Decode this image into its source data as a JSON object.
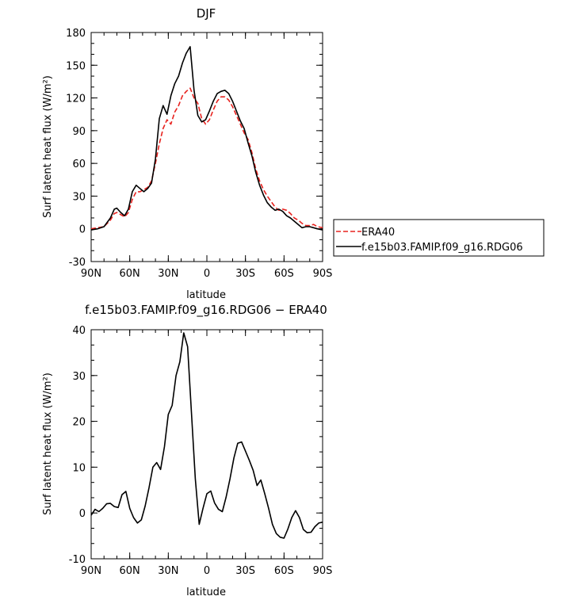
{
  "chart_data": [
    {
      "type": "line",
      "title": "DJF",
      "xlabel": "latitude",
      "ylabel": "Surf latent heat flux (W/m²)",
      "xlim": [
        90,
        -90
      ],
      "ylim": [
        -30,
        180
      ],
      "x_ticks": [
        "90N",
        "60N",
        "30N",
        "0",
        "30S",
        "60S",
        "90S"
      ],
      "y_ticks": [
        "-30",
        "0",
        "30",
        "60",
        "90",
        "120",
        "150",
        "180"
      ],
      "legend_position": "right",
      "series": [
        {
          "name": "ERA40",
          "color": "#e8231f",
          "style": "dashed",
          "x": [
            90,
            85,
            80,
            75,
            72,
            70,
            67,
            64,
            61,
            58,
            55,
            52,
            49,
            46,
            43,
            40,
            37,
            34,
            31,
            28,
            25,
            22,
            19,
            16,
            13,
            10,
            7,
            4,
            1,
            -2,
            -5,
            -8,
            -11,
            -14,
            -17,
            -20,
            -23,
            -26,
            -29,
            -32,
            -35,
            -38,
            -41,
            -44,
            -47,
            -50,
            -53,
            -56,
            -59,
            -62,
            -65,
            -68,
            -71,
            -74,
            -77,
            -80,
            -83,
            -86,
            -90
          ],
          "values": [
            0,
            1,
            2,
            8,
            14,
            15,
            13,
            11,
            15,
            27,
            34,
            34,
            36,
            38,
            44,
            60,
            78,
            92,
            100,
            96,
            107,
            113,
            122,
            126,
            129,
            120,
            115,
            101,
            96,
            100,
            109,
            117,
            121,
            121,
            118,
            112,
            104,
            96,
            88,
            82,
            70,
            55,
            44,
            36,
            30,
            25,
            20,
            17,
            18,
            17,
            14,
            10,
            8,
            5,
            3,
            3,
            4,
            2,
            1
          ]
        },
        {
          "name": "f.e15b03.FAMIP.f09_g16.RDG06",
          "color": "#000000",
          "style": "solid",
          "x": [
            90,
            85,
            80,
            75,
            72,
            70,
            67,
            64,
            61,
            58,
            55,
            52,
            49,
            46,
            43,
            40,
            37,
            34,
            31,
            28,
            25,
            22,
            19,
            16,
            13,
            10,
            7,
            4,
            1,
            -2,
            -5,
            -8,
            -11,
            -14,
            -17,
            -20,
            -23,
            -26,
            -29,
            -32,
            -35,
            -38,
            -41,
            -44,
            -47,
            -50,
            -53,
            -56,
            -59,
            -62,
            -65,
            -68,
            -71,
            -74,
            -77,
            -80,
            -83,
            -86,
            -90
          ],
          "values": [
            -1,
            0,
            2,
            10,
            18,
            19,
            15,
            12,
            18,
            34,
            40,
            37,
            34,
            37,
            42,
            64,
            101,
            113,
            105,
            122,
            133,
            140,
            152,
            161,
            167,
            127,
            104,
            98,
            100,
            108,
            117,
            124,
            126,
            127,
            124,
            117,
            108,
            99,
            92,
            79,
            67,
            52,
            40,
            31,
            24,
            20,
            17,
            18,
            16,
            12,
            10,
            7,
            4,
            1,
            2,
            2,
            1,
            0,
            -1
          ]
        }
      ]
    },
    {
      "type": "line",
      "title": "f.e15b03.FAMIP.f09_g16.RDG06 − ERA40",
      "xlabel": "latitude",
      "ylabel": "Surf latent heat flux (W/m²)",
      "xlim": [
        90,
        -90
      ],
      "ylim": [
        -10,
        40
      ],
      "x_ticks": [
        "90N",
        "60N",
        "30N",
        "0",
        "30S",
        "60S",
        "90S"
      ],
      "y_ticks": [
        "-10",
        "0",
        "10",
        "20",
        "30",
        "40"
      ],
      "series": [
        {
          "color": "#000000",
          "style": "solid",
          "x": [
            90,
            87,
            84,
            81,
            78,
            75,
            72,
            69,
            66,
            63,
            60,
            57,
            54,
            51,
            48,
            45,
            42,
            39,
            36,
            33,
            30,
            27,
            24,
            21,
            18,
            15,
            12,
            9,
            6,
            3,
            0,
            -3,
            -6,
            -9,
            -12,
            -15,
            -18,
            -21,
            -24,
            -27,
            -30,
            -33,
            -36,
            -39,
            -42,
            -45,
            -48,
            -51,
            -54,
            -57,
            -60,
            -63,
            -66,
            -69,
            -72,
            -75,
            -78,
            -81,
            -84,
            -87,
            -90
          ],
          "values": [
            -0.5,
            0.8,
            0.3,
            1.0,
            2.0,
            2.1,
            1.4,
            1.2,
            4.0,
            4.7,
            1.0,
            -1.0,
            -2.2,
            -1.5,
            1.5,
            5.5,
            10.0,
            11.0,
            9.5,
            14.5,
            21.5,
            23.5,
            30.0,
            33.0,
            39.3,
            36.3,
            22.0,
            7.5,
            -2.5,
            1.0,
            4.2,
            4.8,
            2.2,
            0.8,
            0.3,
            3.5,
            7.5,
            12.0,
            15.2,
            15.5,
            13.5,
            11.5,
            9.3,
            6.0,
            7.2,
            4.2,
            1.0,
            -2.5,
            -4.5,
            -5.3,
            -5.5,
            -3.5,
            -1.0,
            0.5,
            -1.0,
            -3.6,
            -4.3,
            -4.2,
            -3.0,
            -2.2,
            -2.0
          ]
        }
      ]
    }
  ]
}
